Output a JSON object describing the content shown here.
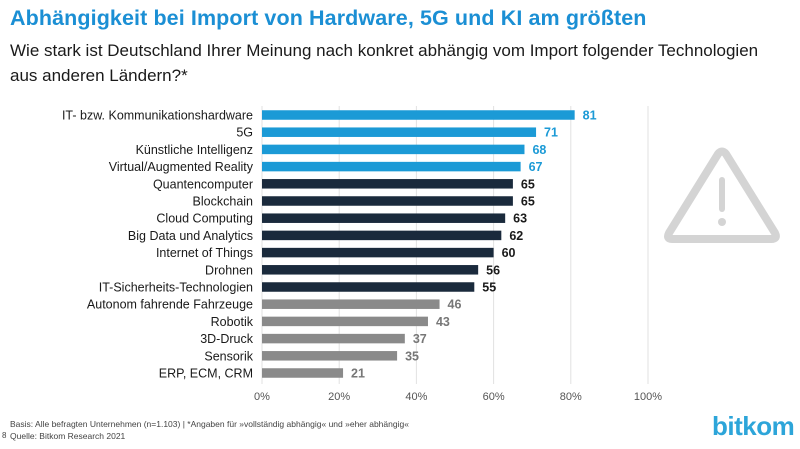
{
  "title": "Abhängigkeit bei Import von Hardware, 5G und KI am größten",
  "subtitle": "Wie stark ist Deutschland Ihrer Meinung nach konkret abhängig vom Import folgender Technologien aus anderen Ländern?*",
  "footer": {
    "basis": "Basis: Alle befragten Unternehmen (n=1.103) | *Angaben für »vollständig abhängig« und »eher abhängig«",
    "source": "Quelle: Bitkom Research 2021",
    "page_number": "8"
  },
  "logo": "bitkom",
  "colors": {
    "highlight": "#1b9ad6",
    "dark": "#1a2a3c",
    "grey": "#8a8a8a",
    "icon": "#d4d4d4"
  },
  "warning_icon": "warning-triangle-icon",
  "chart_data": {
    "type": "bar",
    "orientation": "horizontal",
    "categories": [
      "IT- bzw. Kommunikationshardware",
      "5G",
      "Künstliche Intelligenz",
      "Virtual/Augmented Reality",
      "Quantencomputer",
      "Blockchain",
      "Cloud Computing",
      "Big Data und Analytics",
      "Internet of Things",
      "Drohnen",
      "IT-Sicherheits-Technologien",
      "Autonom fahrende Fahrzeuge",
      "Robotik",
      "3D-Druck",
      "Sensorik",
      "ERP, ECM, CRM"
    ],
    "values": [
      81,
      71,
      68,
      67,
      65,
      65,
      63,
      62,
      60,
      56,
      55,
      46,
      43,
      37,
      35,
      21
    ],
    "value_labels": [
      "81",
      "71",
      "68",
      "67",
      "65",
      "65",
      "63",
      "62",
      "60",
      "56",
      "55",
      "46",
      "43",
      "37",
      "35",
      "21"
    ],
    "color_groups": [
      "highlight",
      "highlight",
      "highlight",
      "highlight",
      "dark",
      "dark",
      "dark",
      "dark",
      "dark",
      "dark",
      "dark",
      "grey",
      "grey",
      "grey",
      "grey",
      "grey"
    ],
    "xlim": [
      0,
      100
    ],
    "xticks": [
      0,
      20,
      40,
      60,
      80,
      100
    ],
    "xtick_labels": [
      "0%",
      "20%",
      "40%",
      "60%",
      "80%",
      "100%"
    ],
    "grid": true,
    "unit": "%"
  }
}
